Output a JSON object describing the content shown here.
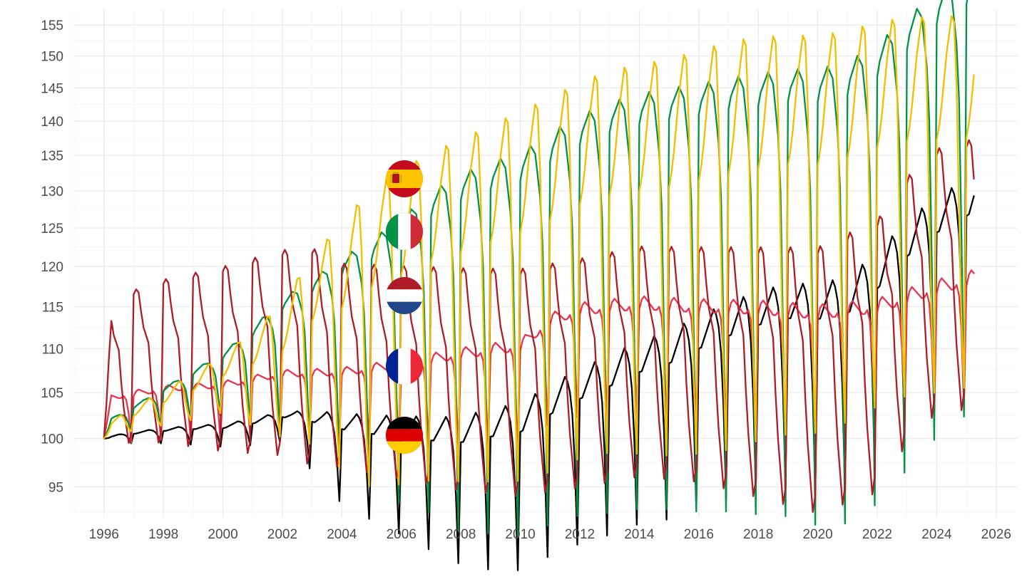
{
  "chart_data": {
    "type": "line",
    "title": "",
    "xlabel": "",
    "ylabel": "",
    "x_start": "1996-01",
    "x_end": "2025-04",
    "frequency": "monthly",
    "xlim": [
      1995,
      2026.7
    ],
    "ylim": [
      92,
      157.5
    ],
    "y_scale": "log",
    "x_ticks": [
      "1996",
      "1998",
      "2000",
      "2002",
      "2004",
      "2006",
      "2008",
      "2010",
      "2012",
      "2014",
      "2016",
      "2018",
      "2020",
      "2022",
      "2024",
      "2026"
    ],
    "y_ticks": [
      "95",
      "100",
      "105",
      "110",
      "115",
      "120",
      "125",
      "130",
      "135",
      "140",
      "145",
      "150",
      "155"
    ],
    "grid": true,
    "legend": "flags beside lines near 2006",
    "series": [
      {
        "country": "Germany",
        "flag": "flag-germany-icon",
        "color": "#000000",
        "trend": [
          [
            1996,
            100
          ],
          [
            1997,
            100.5
          ],
          [
            1998,
            100.8
          ],
          [
            1999,
            101
          ],
          [
            2000,
            101.1
          ],
          [
            2001,
            101.6
          ],
          [
            2002,
            102.3
          ],
          [
            2003,
            101.8
          ],
          [
            2004,
            101
          ],
          [
            2005,
            100.5
          ],
          [
            2006,
            100.2
          ],
          [
            2007,
            99.8
          ],
          [
            2008,
            99.6
          ],
          [
            2009,
            100.2
          ],
          [
            2010,
            100.7
          ],
          [
            2011,
            102.6
          ],
          [
            2012,
            104.3
          ],
          [
            2013,
            105.7
          ],
          [
            2014,
            107.3
          ],
          [
            2015,
            108.3
          ],
          [
            2016,
            110
          ],
          [
            2017,
            111.5
          ],
          [
            2018,
            112.8
          ],
          [
            2019,
            113.6
          ],
          [
            2020,
            113.5
          ],
          [
            2021,
            114.2
          ],
          [
            2022,
            117.2
          ],
          [
            2023,
            121.3
          ],
          [
            2024,
            124.4
          ],
          [
            2025,
            126.6
          ],
          [
            2025.25,
            127.3
          ]
        ],
        "amplitude": [
          [
            1996,
            0.3
          ],
          [
            2002,
            1.2
          ],
          [
            2004,
            3.5
          ],
          [
            2009,
            6
          ],
          [
            2015,
            7.5
          ],
          [
            2025.25,
            10
          ]
        ],
        "shape": [
          0,
          0,
          0.1,
          0.2,
          0.3,
          0.4,
          0.5,
          0.4,
          0.2,
          -0.2,
          -1,
          -2.2
        ]
      },
      {
        "country": "France",
        "flag": "flag-france-icon",
        "color": "#e8344e",
        "trend": [
          [
            1996,
            103.8
          ],
          [
            1998,
            104.8
          ],
          [
            2000,
            105.2
          ],
          [
            2002,
            106.4
          ],
          [
            2004,
            106.5
          ],
          [
            2006,
            107.2
          ],
          [
            2008,
            108.3
          ],
          [
            2010,
            109.1
          ],
          [
            2011,
            112.1
          ],
          [
            2012,
            113.3
          ],
          [
            2014,
            113.9
          ],
          [
            2016,
            113.5
          ],
          [
            2018,
            113.3
          ],
          [
            2020,
            112.7
          ],
          [
            2022,
            113.4
          ],
          [
            2023,
            114.6
          ],
          [
            2024,
            115.7
          ],
          [
            2025.25,
            116.9
          ]
        ],
        "amplitude": [
          [
            1996,
            3
          ],
          [
            2003,
            4
          ],
          [
            2008,
            6
          ],
          [
            2014,
            8
          ],
          [
            2025.25,
            9
          ]
        ],
        "shape": [
          0.1,
          0.25,
          0.3,
          0.25,
          0.2,
          0.15,
          0.1,
          0.1,
          0.15,
          0,
          -0.5,
          -1.5
        ]
      },
      {
        "country": "Italy",
        "flag": "flag-italy-icon",
        "color": "#009246",
        "trend": [
          [
            1996,
            101.2
          ],
          [
            1997,
            102.5
          ],
          [
            1998,
            104
          ],
          [
            1999,
            105.5
          ],
          [
            2000,
            107
          ],
          [
            2001,
            108.5
          ],
          [
            2002,
            110.5
          ],
          [
            2003,
            111.5
          ],
          [
            2004,
            112.5
          ],
          [
            2005,
            113.3
          ],
          [
            2006,
            114.5
          ],
          [
            2007,
            116.5
          ],
          [
            2008,
            117.5
          ],
          [
            2009,
            118.5
          ],
          [
            2010,
            119.3
          ],
          [
            2011,
            121.5
          ],
          [
            2012,
            123.5
          ],
          [
            2013,
            124.8
          ],
          [
            2014,
            125.8
          ],
          [
            2015,
            126.3
          ],
          [
            2016,
            126.7
          ],
          [
            2017,
            127.3
          ],
          [
            2018,
            127.6
          ],
          [
            2019,
            128
          ],
          [
            2020,
            127.7
          ],
          [
            2021,
            128.5
          ],
          [
            2022,
            131
          ],
          [
            2023,
            135
          ],
          [
            2024,
            139
          ],
          [
            2025,
            142
          ],
          [
            2025.25,
            143
          ]
        ],
        "amplitude": [
          [
            1996,
            0.5
          ],
          [
            2000,
            2.5
          ],
          [
            2003,
            7
          ],
          [
            2008,
            15
          ],
          [
            2013,
            18
          ],
          [
            2025.25,
            22
          ]
        ],
        "shape": [
          0.75,
          0.85,
          0.9,
          0.95,
          1,
          0.95,
          0.9,
          0.7,
          0.5,
          0.1,
          -0.8,
          -1.8
        ]
      },
      {
        "country": "Netherlands",
        "flag": "flag-netherlands-icon",
        "color": "#ae1c28",
        "trend": [
          [
            1996,
            108.5
          ],
          [
            1998,
            110
          ],
          [
            2000,
            110.5
          ],
          [
            2002,
            111.5
          ],
          [
            2003,
            111.2
          ],
          [
            2004,
            110
          ],
          [
            2006,
            109.3
          ],
          [
            2008,
            108.6
          ],
          [
            2010,
            108.3
          ],
          [
            2012,
            109.4
          ],
          [
            2014,
            110.8
          ],
          [
            2016,
            110.5
          ],
          [
            2018,
            109.8
          ],
          [
            2020,
            109.1
          ],
          [
            2022,
            112
          ],
          [
            2023,
            117.5
          ],
          [
            2024,
            121.2
          ],
          [
            2025.25,
            122.2
          ]
        ],
        "amplitude": [
          [
            1996,
            9
          ],
          [
            2003,
            14
          ],
          [
            2004,
            13
          ],
          [
            2008,
            14
          ],
          [
            2016,
            15
          ],
          [
            2025.25,
            19
          ]
        ],
        "shape": [
          0.75,
          0.8,
          0.75,
          0.5,
          0.3,
          0.2,
          0.1,
          -0.3,
          -0.6,
          -0.8,
          -1,
          -0.9
        ]
      },
      {
        "country": "Spain",
        "flag": "flag-spain-icon",
        "color": "#f1bf00",
        "trend": [
          [
            1996,
            100.8
          ],
          [
            1997,
            102.2
          ],
          [
            1998,
            103.5
          ],
          [
            1999,
            104.8
          ],
          [
            2000,
            106.3
          ],
          [
            2001,
            107.3
          ],
          [
            2002,
            108.5
          ],
          [
            2003,
            111.5
          ],
          [
            2004,
            112.5
          ],
          [
            2005,
            114.5
          ],
          [
            2006,
            116
          ],
          [
            2007,
            117.5
          ],
          [
            2008,
            118.5
          ],
          [
            2009,
            119.6
          ],
          [
            2010,
            120.8
          ],
          [
            2011,
            122.3
          ],
          [
            2012,
            124.3
          ],
          [
            2013,
            125.5
          ],
          [
            2014,
            126
          ],
          [
            2015,
            126.4
          ],
          [
            2016,
            127.2
          ],
          [
            2017,
            128.2
          ],
          [
            2018,
            129
          ],
          [
            2019,
            129.5
          ],
          [
            2020,
            129.5
          ],
          [
            2021,
            130.5
          ],
          [
            2022,
            132
          ],
          [
            2023,
            133
          ],
          [
            2024,
            133.2
          ],
          [
            2025,
            133.6
          ],
          [
            2025.25,
            134
          ]
        ],
        "amplitude": [
          [
            1996,
            0.5
          ],
          [
            2000,
            2.5
          ],
          [
            2002,
            6
          ],
          [
            2005,
            14
          ],
          [
            2010,
            18
          ],
          [
            2017,
            21
          ],
          [
            2025.25,
            20
          ]
        ],
        "shape": [
          0.2,
          0.3,
          0.45,
          0.65,
          0.85,
          1,
          1.15,
          1.1,
          0.6,
          -0.3,
          -1,
          -1.4
        ]
      }
    ]
  }
}
